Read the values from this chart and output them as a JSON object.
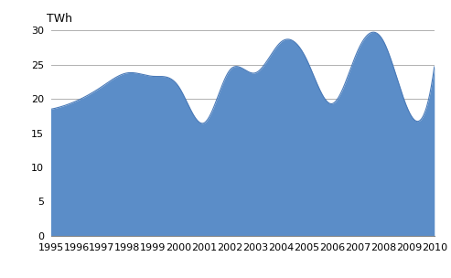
{
  "years": [
    1995,
    1996,
    1997,
    1998,
    1999,
    2000,
    2001,
    2002,
    2003,
    2004,
    2005,
    2006,
    2007,
    2008,
    2009,
    2010
  ],
  "values": [
    18.5,
    19.7,
    21.8,
    23.8,
    23.3,
    21.8,
    16.5,
    24.2,
    23.8,
    28.3,
    25.8,
    19.3,
    27.0,
    28.5,
    18.2,
    24.7
  ],
  "fill_color": "#5B8DC8",
  "line_color": "#4A7AB8",
  "ylabel": "TWh",
  "ylim": [
    0,
    30
  ],
  "yticks": [
    0,
    5,
    10,
    15,
    20,
    25,
    30
  ],
  "grid_color": "#B0B0B0",
  "bg_color": "#FFFFFF",
  "axis_label_fontsize": 9,
  "tick_fontsize": 8,
  "fig_width": 4.93,
  "fig_height": 3.04,
  "dpi": 100
}
